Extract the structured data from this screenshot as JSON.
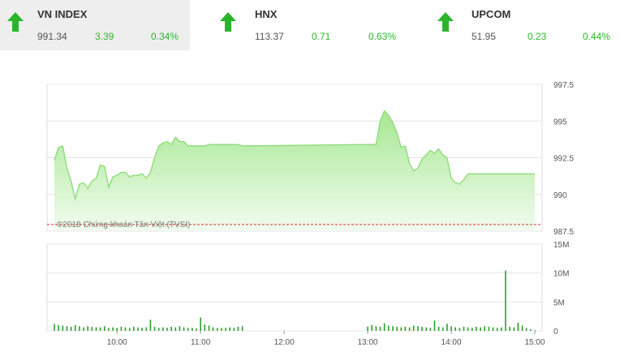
{
  "tickers": [
    {
      "name": "VN INDEX",
      "value": "991.34",
      "change": "3.39",
      "percent": "0.34%",
      "direction_icon": "up-arrow-icon"
    },
    {
      "name": "HNX",
      "value": "113.37",
      "change": "0.71",
      "percent": "0.63%",
      "direction_icon": "up-arrow-icon"
    },
    {
      "name": "UPCOM",
      "value": "51.95",
      "change": "0.23",
      "percent": "0.44%",
      "direction_icon": "up-arrow-icon"
    }
  ],
  "colors": {
    "up": "#2bb52b",
    "area_line": "#8fdc7a",
    "area_fill": "#b9eda6",
    "volume_bar": "#2e9e2e",
    "reference_line": "#cc3333"
  },
  "chart_data": {
    "type": "area",
    "watermark": "©2018 Chứng khoán Tân Việt (TVSI)",
    "price": {
      "y_tick_labels": [
        "997.5",
        "995",
        "992.5",
        "990",
        "987.5"
      ],
      "ylim": [
        987.5,
        997.5
      ],
      "reference_value": 987.95,
      "x": [
        "09:15",
        "09:18",
        "09:21",
        "09:24",
        "09:27",
        "09:30",
        "09:33",
        "09:36",
        "09:39",
        "09:42",
        "09:45",
        "09:48",
        "09:51",
        "09:54",
        "09:57",
        "10:00",
        "10:03",
        "10:06",
        "10:09",
        "10:12",
        "10:15",
        "10:18",
        "10:21",
        "10:24",
        "10:27",
        "10:30",
        "10:33",
        "10:36",
        "10:39",
        "10:42",
        "10:45",
        "10:48",
        "10:51",
        "10:54",
        "10:57",
        "11:00",
        "11:03",
        "11:06",
        "11:09",
        "11:12",
        "11:15",
        "11:18",
        "11:21",
        "11:24",
        "11:27",
        "11:30",
        "13:00",
        "13:03",
        "13:06",
        "13:09",
        "13:12",
        "13:15",
        "13:18",
        "13:21",
        "13:24",
        "13:27",
        "13:30",
        "13:33",
        "13:36",
        "13:39",
        "13:42",
        "13:45",
        "13:48",
        "13:51",
        "13:54",
        "13:57",
        "14:00",
        "14:03",
        "14:06",
        "14:09",
        "14:12",
        "14:15",
        "14:18",
        "14:21",
        "14:24",
        "14:27",
        "14:30",
        "14:33",
        "14:36",
        "14:39",
        "14:42",
        "14:45",
        "14:48",
        "14:51",
        "14:54",
        "14:57",
        "15:00"
      ],
      "y": [
        992.3,
        993.2,
        993.3,
        991.8,
        990.9,
        989.7,
        990.7,
        990.8,
        990.4,
        990.9,
        991.1,
        992.0,
        991.9,
        990.5,
        991.2,
        991.3,
        991.5,
        991.5,
        991.2,
        991.3,
        991.3,
        991.4,
        991.1,
        991.5,
        992.5,
        993.3,
        993.5,
        993.6,
        993.4,
        993.9,
        993.6,
        993.6,
        993.3,
        993.3,
        993.3,
        993.3,
        993.3,
        993.4,
        993.4,
        993.4,
        993.4,
        993.4,
        993.4,
        993.4,
        993.4,
        993.3,
        993.4,
        993.4,
        993.4,
        995.0,
        995.7,
        995.4,
        994.9,
        994.2,
        993.2,
        993.3,
        992.1,
        991.6,
        991.8,
        992.4,
        992.7,
        993.0,
        992.8,
        993.1,
        992.7,
        992.5,
        991.1,
        990.8,
        990.7,
        991.0,
        991.4,
        991.4,
        991.4,
        991.4,
        991.4,
        991.4,
        991.4,
        991.4,
        991.4,
        991.4,
        991.4,
        991.4,
        991.4,
        991.4,
        991.4,
        991.4,
        991.4
      ]
    },
    "volume": {
      "y_tick_labels": [
        "15M",
        "10M",
        "5M",
        "0"
      ],
      "ylim": [
        0,
        15
      ],
      "unit": "M",
      "x": [
        "09:15",
        "09:18",
        "09:21",
        "09:24",
        "09:27",
        "09:30",
        "09:33",
        "09:36",
        "09:39",
        "09:42",
        "09:45",
        "09:48",
        "09:51",
        "09:54",
        "09:57",
        "10:00",
        "10:03",
        "10:06",
        "10:09",
        "10:12",
        "10:15",
        "10:18",
        "10:21",
        "10:24",
        "10:27",
        "10:30",
        "10:33",
        "10:36",
        "10:39",
        "10:42",
        "10:45",
        "10:48",
        "10:51",
        "10:54",
        "10:57",
        "11:00",
        "11:03",
        "11:06",
        "11:09",
        "11:12",
        "11:15",
        "11:18",
        "11:21",
        "11:24",
        "11:27",
        "11:30",
        "13:00",
        "13:03",
        "13:06",
        "13:09",
        "13:12",
        "13:15",
        "13:18",
        "13:21",
        "13:24",
        "13:27",
        "13:30",
        "13:33",
        "13:36",
        "13:39",
        "13:42",
        "13:45",
        "13:48",
        "13:51",
        "13:54",
        "13:57",
        "14:00",
        "14:03",
        "14:06",
        "14:09",
        "14:12",
        "14:15",
        "14:18",
        "14:21",
        "14:24",
        "14:27",
        "14:30",
        "14:33",
        "14:36",
        "14:39",
        "14:42",
        "14:45",
        "14:48",
        "14:51",
        "14:54",
        "14:57",
        "15:00"
      ],
      "y": [
        1.2,
        1.0,
        0.9,
        0.8,
        0.7,
        1.0,
        0.8,
        0.6,
        0.8,
        0.7,
        0.6,
        0.6,
        0.8,
        0.5,
        0.6,
        0.5,
        0.7,
        0.6,
        0.5,
        0.7,
        0.6,
        0.5,
        0.6,
        1.9,
        0.7,
        0.5,
        0.6,
        0.5,
        0.7,
        0.6,
        0.8,
        0.6,
        0.5,
        0.5,
        0.4,
        2.3,
        1.1,
        0.9,
        0.6,
        0.5,
        0.5,
        0.5,
        0.6,
        0.5,
        0.7,
        0.8,
        0.7,
        1.0,
        0.8,
        0.7,
        1.3,
        0.9,
        0.8,
        0.7,
        0.6,
        0.7,
        0.6,
        0.9,
        0.8,
        0.7,
        0.6,
        0.5,
        1.8,
        0.7,
        0.6,
        1.2,
        0.8,
        0.6,
        0.5,
        0.7,
        0.6,
        0.5,
        0.7,
        0.6,
        0.8,
        0.7,
        0.6,
        0.5,
        0.6,
        10.4,
        0.7,
        0.6,
        1.4,
        0.9,
        0.5,
        0.3,
        0.1
      ]
    },
    "x_tick_labels": [
      "10:00",
      "11:00",
      "12:00",
      "13:00",
      "14:00",
      "15:00"
    ],
    "x_tick_values": [
      "10:00",
      "11:00",
      "12:00",
      "13:00",
      "14:00",
      "15:00"
    ]
  }
}
